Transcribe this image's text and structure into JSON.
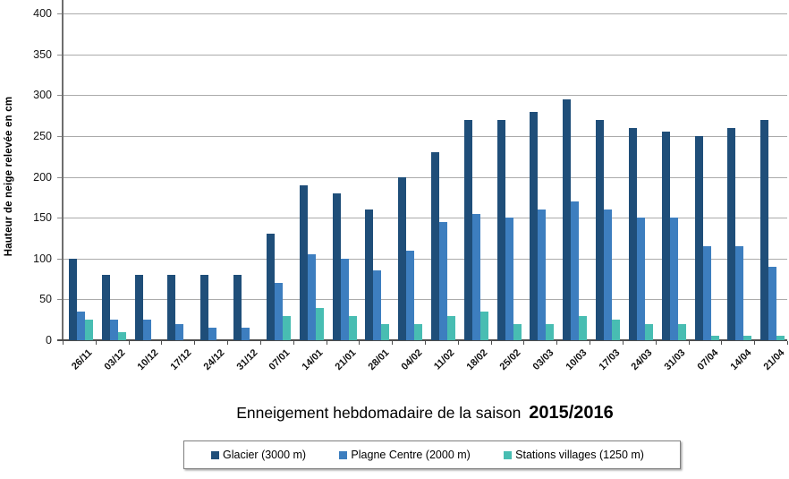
{
  "chart_data": {
    "type": "bar",
    "title": "Enneigement hebdomadaire de la saison",
    "title_bold": "2015/2016",
    "ylabel": "Hauteur de neige relevée en cm",
    "xlabel": "",
    "ylim": [
      0,
      400
    ],
    "yticks": [
      0,
      50,
      100,
      150,
      200,
      250,
      300,
      350,
      400
    ],
    "grid": true,
    "legend_position": "bottom",
    "categories": [
      "26/11",
      "03/12",
      "10/12",
      "17/12",
      "24/12",
      "31/12",
      "07/01",
      "14/01",
      "21/01",
      "28/01",
      "04/02",
      "11/02",
      "18/02",
      "25/02",
      "03/03",
      "10/03",
      "17/03",
      "24/03",
      "31/03",
      "07/04",
      "14/04",
      "21/04"
    ],
    "series": [
      {
        "name": "Glacier (3000 m)",
        "color": "#1F4E79",
        "values": [
          100,
          80,
          80,
          80,
          80,
          80,
          130,
          190,
          180,
          160,
          200,
          230,
          270,
          270,
          280,
          295,
          270,
          260,
          255,
          250,
          260,
          270
        ]
      },
      {
        "name": "Plagne Centre (2000 m)",
        "color": "#3D7EBF",
        "values": [
          35,
          25,
          25,
          20,
          15,
          15,
          70,
          105,
          100,
          85,
          110,
          145,
          155,
          150,
          160,
          170,
          160,
          150,
          150,
          115,
          115,
          90
        ]
      },
      {
        "name": "Stations villages (1250 m)",
        "color": "#48BDB2",
        "values": [
          25,
          10,
          0,
          0,
          0,
          0,
          30,
          40,
          30,
          20,
          20,
          30,
          35,
          20,
          20,
          30,
          25,
          20,
          20,
          5,
          5,
          5
        ]
      }
    ],
    "colors": {
      "gridline": "#ABABAB",
      "axis": "#4d4d4d",
      "text": "#000000"
    }
  }
}
